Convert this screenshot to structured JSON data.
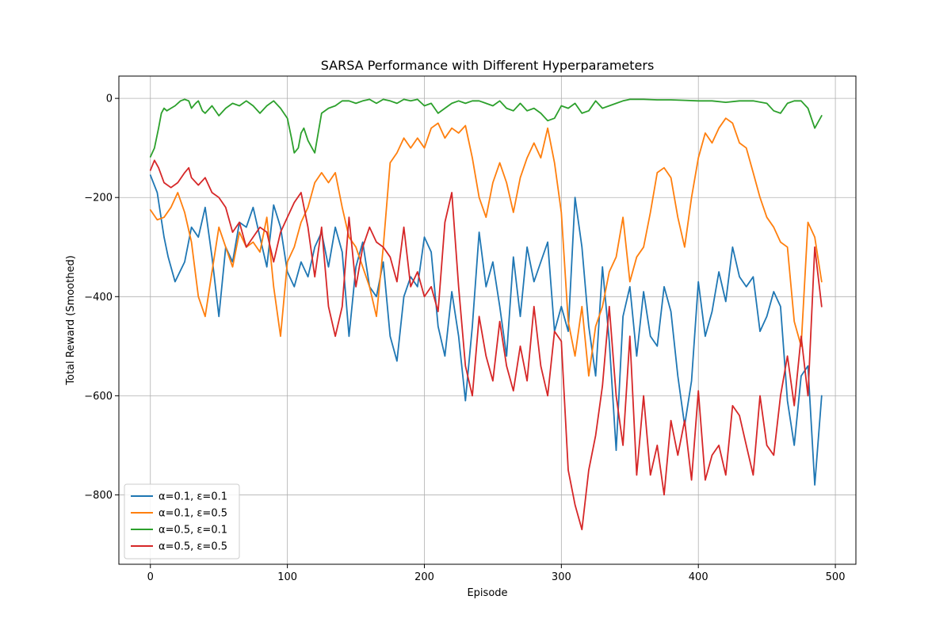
{
  "chart_data": {
    "type": "line",
    "title": "SARSA Performance with Different Hyperparameters",
    "xlabel": "Episode",
    "ylabel": "Total Reward (Smoothed)",
    "xlim": [
      -23,
      515
    ],
    "ylim": [
      -940,
      45
    ],
    "xticks": [
      0,
      100,
      200,
      300,
      400,
      500
    ],
    "yticks": [
      -800,
      -600,
      -400,
      -200,
      0
    ],
    "grid": true,
    "legend_position": "bottom-left",
    "series": [
      {
        "name": "α=0.1, ε=0.1",
        "color": "#1f77b4",
        "x": [
          0,
          5,
          10,
          13,
          18,
          25,
          30,
          35,
          40,
          45,
          50,
          55,
          60,
          65,
          70,
          75,
          80,
          85,
          90,
          95,
          100,
          105,
          110,
          115,
          120,
          125,
          130,
          135,
          140,
          145,
          150,
          155,
          160,
          165,
          170,
          175,
          180,
          185,
          190,
          195,
          200,
          205,
          210,
          215,
          220,
          225,
          230,
          235,
          240,
          245,
          250,
          255,
          260,
          265,
          270,
          275,
          280,
          285,
          290,
          295,
          300,
          305,
          310,
          315,
          320,
          325,
          330,
          335,
          340,
          345,
          350,
          355,
          360,
          365,
          370,
          375,
          380,
          385,
          390,
          395,
          400,
          405,
          410,
          415,
          420,
          425,
          430,
          435,
          440,
          445,
          450,
          455,
          460,
          465,
          470,
          475,
          480,
          485,
          490
        ],
        "y": [
          -155,
          -190,
          -280,
          -320,
          -370,
          -330,
          -260,
          -280,
          -220,
          -320,
          -440,
          -300,
          -330,
          -250,
          -260,
          -220,
          -280,
          -340,
          -215,
          -260,
          -350,
          -380,
          -330,
          -360,
          -300,
          -270,
          -340,
          -260,
          -310,
          -480,
          -340,
          -290,
          -380,
          -400,
          -330,
          -480,
          -530,
          -400,
          -360,
          -380,
          -280,
          -310,
          -460,
          -520,
          -390,
          -480,
          -610,
          -460,
          -270,
          -380,
          -330,
          -420,
          -520,
          -320,
          -440,
          -300,
          -370,
          -330,
          -290,
          -470,
          -420,
          -470,
          -200,
          -300,
          -460,
          -560,
          -340,
          -490,
          -710,
          -440,
          -380,
          -520,
          -390,
          -480,
          -500,
          -380,
          -430,
          -560,
          -660,
          -570,
          -370,
          -480,
          -430,
          -350,
          -410,
          -300,
          -360,
          -380,
          -360,
          -470,
          -440,
          -390,
          -420,
          -610,
          -700,
          -560,
          -540,
          -780,
          -600
        ]
      },
      {
        "name": "α=0.1, ε=0.5",
        "color": "#ff7f0e",
        "x": [
          0,
          5,
          10,
          15,
          20,
          25,
          30,
          35,
          40,
          45,
          50,
          55,
          60,
          65,
          70,
          75,
          80,
          85,
          90,
          95,
          100,
          105,
          110,
          115,
          120,
          125,
          130,
          135,
          140,
          145,
          150,
          155,
          160,
          165,
          170,
          175,
          180,
          185,
          190,
          195,
          200,
          205,
          210,
          215,
          220,
          225,
          230,
          235,
          240,
          245,
          250,
          255,
          260,
          265,
          270,
          275,
          280,
          285,
          290,
          295,
          300,
          305,
          310,
          315,
          320,
          325,
          330,
          335,
          340,
          345,
          350,
          355,
          360,
          365,
          370,
          375,
          380,
          385,
          390,
          395,
          400,
          405,
          410,
          415,
          420,
          425,
          430,
          435,
          440,
          445,
          450,
          455,
          460,
          465,
          470,
          475,
          480,
          485,
          490
        ],
        "y": [
          -225,
          -245,
          -240,
          -220,
          -190,
          -230,
          -290,
          -400,
          -440,
          -350,
          -260,
          -300,
          -340,
          -270,
          -300,
          -290,
          -310,
          -240,
          -380,
          -480,
          -330,
          -300,
          -250,
          -220,
          -170,
          -150,
          -170,
          -150,
          -220,
          -280,
          -300,
          -340,
          -380,
          -440,
          -300,
          -130,
          -110,
          -80,
          -100,
          -80,
          -100,
          -60,
          -50,
          -80,
          -60,
          -70,
          -55,
          -120,
          -200,
          -240,
          -170,
          -130,
          -170,
          -230,
          -160,
          -120,
          -90,
          -120,
          -60,
          -130,
          -230,
          -450,
          -520,
          -420,
          -560,
          -460,
          -420,
          -350,
          -320,
          -240,
          -370,
          -320,
          -300,
          -230,
          -150,
          -140,
          -160,
          -240,
          -300,
          -200,
          -120,
          -70,
          -90,
          -60,
          -40,
          -50,
          -90,
          -100,
          -150,
          -200,
          -240,
          -260,
          -290,
          -300,
          -450,
          -500,
          -250,
          -280,
          -370
        ]
      },
      {
        "name": "α=0.5, ε=0.1",
        "color": "#2ca02c",
        "x": [
          0,
          3,
          6,
          8,
          10,
          12,
          15,
          18,
          20,
          22,
          25,
          28,
          30,
          33,
          35,
          38,
          40,
          45,
          50,
          55,
          60,
          65,
          70,
          75,
          80,
          85,
          90,
          95,
          100,
          103,
          105,
          108,
          110,
          112,
          115,
          118,
          120,
          125,
          130,
          135,
          140,
          145,
          150,
          155,
          160,
          165,
          170,
          175,
          180,
          185,
          190,
          195,
          200,
          205,
          210,
          215,
          220,
          225,
          230,
          235,
          240,
          245,
          250,
          255,
          260,
          265,
          270,
          275,
          280,
          285,
          290,
          295,
          300,
          305,
          310,
          315,
          320,
          325,
          330,
          335,
          340,
          345,
          350,
          360,
          370,
          380,
          390,
          400,
          410,
          420,
          430,
          440,
          450,
          455,
          460,
          465,
          470,
          475,
          480,
          485,
          490
        ],
        "y": [
          -118,
          -100,
          -60,
          -30,
          -20,
          -25,
          -20,
          -15,
          -10,
          -5,
          -2,
          -5,
          -20,
          -10,
          -5,
          -25,
          -30,
          -15,
          -35,
          -20,
          -10,
          -15,
          -5,
          -15,
          -30,
          -15,
          -5,
          -20,
          -40,
          -80,
          -110,
          -100,
          -70,
          -60,
          -85,
          -100,
          -110,
          -30,
          -20,
          -15,
          -5,
          -5,
          -10,
          -5,
          -2,
          -10,
          -2,
          -5,
          -10,
          -2,
          -5,
          -2,
          -15,
          -10,
          -30,
          -20,
          -10,
          -5,
          -10,
          -5,
          -5,
          -10,
          -15,
          -5,
          -20,
          -25,
          -10,
          -25,
          -20,
          -30,
          -45,
          -40,
          -15,
          -20,
          -10,
          -30,
          -25,
          -5,
          -20,
          -15,
          -10,
          -5,
          -2,
          -2,
          -3,
          -3,
          -4,
          -5,
          -5,
          -8,
          -5,
          -5,
          -10,
          -25,
          -30,
          -10,
          -5,
          -5,
          -20,
          -60,
          -35
        ]
      },
      {
        "name": "α=0.5, ε=0.5",
        "color": "#d62728",
        "x": [
          0,
          3,
          6,
          10,
          15,
          20,
          25,
          28,
          30,
          35,
          40,
          45,
          50,
          55,
          60,
          65,
          70,
          75,
          80,
          85,
          90,
          95,
          100,
          105,
          110,
          115,
          120,
          125,
          130,
          135,
          140,
          145,
          150,
          155,
          160,
          165,
          170,
          175,
          180,
          185,
          190,
          195,
          200,
          205,
          210,
          215,
          220,
          225,
          230,
          235,
          240,
          245,
          250,
          255,
          260,
          265,
          270,
          275,
          280,
          285,
          290,
          295,
          300,
          305,
          310,
          315,
          320,
          325,
          330,
          335,
          340,
          345,
          350,
          355,
          360,
          365,
          370,
          375,
          380,
          385,
          390,
          395,
          400,
          405,
          410,
          415,
          420,
          425,
          430,
          435,
          440,
          445,
          450,
          455,
          460,
          465,
          470,
          475,
          480,
          485,
          490
        ],
        "y": [
          -145,
          -125,
          -140,
          -170,
          -180,
          -170,
          -150,
          -140,
          -160,
          -175,
          -160,
          -190,
          -200,
          -220,
          -270,
          -250,
          -300,
          -280,
          -260,
          -270,
          -330,
          -270,
          -240,
          -210,
          -190,
          -260,
          -360,
          -260,
          -420,
          -480,
          -420,
          -240,
          -380,
          -300,
          -260,
          -290,
          -300,
          -320,
          -370,
          -260,
          -380,
          -350,
          -400,
          -380,
          -430,
          -250,
          -190,
          -380,
          -540,
          -600,
          -440,
          -520,
          -570,
          -450,
          -540,
          -590,
          -500,
          -570,
          -420,
          -540,
          -600,
          -470,
          -490,
          -750,
          -820,
          -870,
          -750,
          -680,
          -580,
          -420,
          -600,
          -700,
          -480,
          -760,
          -600,
          -760,
          -700,
          -800,
          -650,
          -720,
          -650,
          -770,
          -590,
          -770,
          -720,
          -700,
          -760,
          -620,
          -640,
          -700,
          -760,
          -600,
          -700,
          -720,
          -600,
          -520,
          -620,
          -480,
          -600,
          -300,
          -420
        ]
      }
    ]
  }
}
